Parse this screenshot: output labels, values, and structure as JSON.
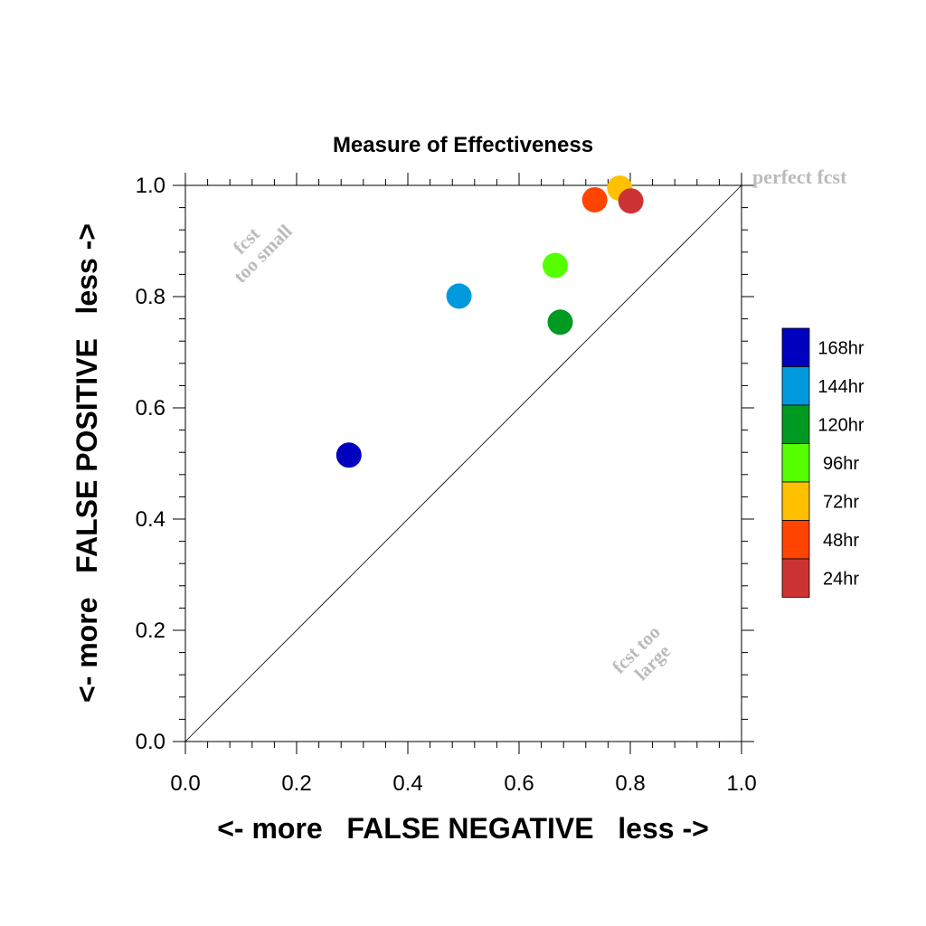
{
  "chart_data": {
    "type": "scatter",
    "title": "Measure of Effectiveness",
    "xlabel": "<- more   FALSE NEGATIVE   less ->",
    "ylabel": "<- more   FALSE POSITIVE   less ->",
    "xlim": [
      0,
      1
    ],
    "ylim": [
      0,
      1
    ],
    "x_ticks": [
      "0.0",
      "0.2",
      "0.4",
      "0.6",
      "0.8",
      "1.0"
    ],
    "y_ticks": [
      "0.0",
      "0.2",
      "0.4",
      "0.6",
      "0.8",
      "1.0"
    ],
    "grid": false,
    "legend_position": "right",
    "diagonal": true,
    "series": [
      {
        "name": "168hr",
        "color": "#0000bf",
        "x": 0.294,
        "y": 0.515
      },
      {
        "name": "144hr",
        "color": "#0099dd",
        "x": 0.492,
        "y": 0.801
      },
      {
        "name": "120hr",
        "color": "#009922",
        "x": 0.674,
        "y": 0.754
      },
      {
        "name": "96hr",
        "color": "#55ff00",
        "x": 0.665,
        "y": 0.856
      },
      {
        "name": "72hr",
        "color": "#ffc000",
        "x": 0.781,
        "y": 0.995
      },
      {
        "name": "48hr",
        "color": "#ff4400",
        "x": 0.736,
        "y": 0.974
      },
      {
        "name": "24hr",
        "color": "#cc3333",
        "x": 0.801,
        "y": 0.972
      }
    ],
    "annotations": {
      "perfect": "perfect fcst",
      "too_small_1": "fcst",
      "too_small_2": "too small",
      "too_large_1": "fcst too",
      "too_large_2": "large"
    }
  }
}
